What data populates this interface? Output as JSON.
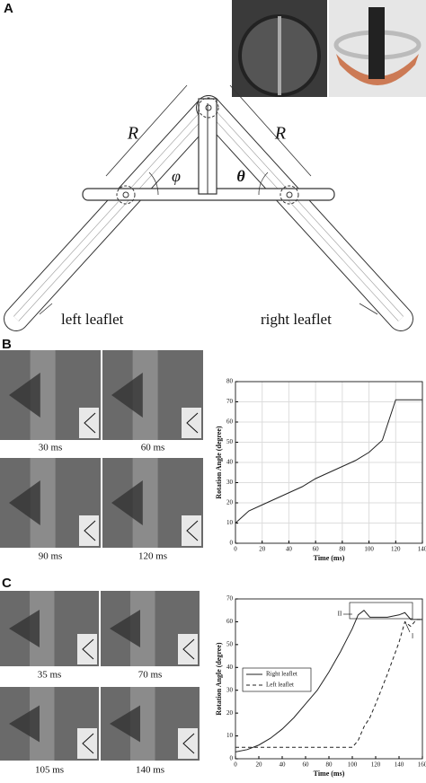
{
  "panels": {
    "a": "A",
    "b": "B",
    "c": "C"
  },
  "diagram": {
    "r_left": "R",
    "r_right": "R",
    "phi": "φ",
    "theta": "θ",
    "left_leaflet": "left leaflet",
    "right_leaflet": "right leaflet"
  },
  "photos_b": [
    "30 ms",
    "60 ms",
    "90 ms",
    "120 ms"
  ],
  "photos_c": [
    "35 ms",
    "70 ms",
    "105 ms",
    "140 ms"
  ],
  "chart_data": [
    {
      "type": "line",
      "xlabel": "Time (ms)",
      "ylabel": "Rotation Angle (degree)",
      "x": [
        0,
        5,
        10,
        20,
        30,
        40,
        50,
        60,
        70,
        80,
        90,
        100,
        110,
        120,
        140
      ],
      "values": [
        10,
        13,
        16,
        19,
        22,
        25,
        28,
        32,
        35,
        38,
        41,
        45,
        51,
        71,
        71
      ],
      "color": "#222222",
      "grid": true,
      "xlim": [
        0,
        140
      ],
      "xticks": [
        0,
        20,
        40,
        60,
        80,
        100,
        120,
        140
      ],
      "ylim": [
        0,
        80
      ],
      "yticks": [
        0,
        10,
        20,
        30,
        40,
        50,
        60,
        70,
        80
      ]
    },
    {
      "type": "line",
      "xlabel": "Time (ms)",
      "ylabel": "Rotation Angle (degree)",
      "x": [
        0,
        10,
        20,
        30,
        40,
        50,
        60,
        70,
        80,
        90,
        100,
        105,
        110,
        115,
        120,
        130,
        140,
        145,
        150,
        155,
        160
      ],
      "series": [
        {
          "name": "Right leaflet",
          "color": "#222222",
          "line_style": "solid",
          "values": [
            3,
            4,
            6,
            9,
            13,
            18,
            24,
            30,
            38,
            47,
            57,
            63,
            65,
            62,
            62,
            62,
            63,
            64,
            61,
            61,
            61
          ]
        },
        {
          "name": "Left leaflet",
          "color": "#222222",
          "line_style": "dashed",
          "values": [
            5,
            5,
            5,
            5,
            5,
            5,
            5,
            5,
            5,
            5,
            5,
            8,
            14,
            18,
            24,
            37,
            51,
            60,
            58,
            61,
            61
          ]
        }
      ],
      "annotations": [
        "II",
        "I"
      ],
      "grid": false,
      "legend": "center-left",
      "xlim": [
        0,
        160
      ],
      "xticks": [
        0,
        20,
        40,
        60,
        80,
        100,
        120,
        140,
        160
      ],
      "ylim": [
        0,
        70
      ],
      "yticks": [
        0,
        10,
        20,
        30,
        40,
        50,
        60,
        70
      ]
    }
  ]
}
